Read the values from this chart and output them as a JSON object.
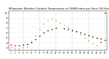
{
  "title": "Milwaukee Weather Outdoor Temperature vs THSW Index per Hour (24 Hours)",
  "title_fontsize": 2.8,
  "background_color": "#ffffff",
  "xlim": [
    0.5,
    24.5
  ],
  "ylim": [
    25,
    105
  ],
  "yticks": [
    30,
    40,
    50,
    60,
    70,
    80,
    90,
    100
  ],
  "ytick_labels": [
    "3",
    "4",
    "5",
    "6",
    "7",
    "8",
    "9",
    "10"
  ],
  "ytick_fontsize": 2.5,
  "xtick_fontsize": 2.2,
  "xticks": [
    1,
    2,
    3,
    4,
    5,
    6,
    7,
    8,
    9,
    10,
    11,
    12,
    13,
    14,
    15,
    16,
    17,
    18,
    19,
    20,
    21,
    22,
    23,
    24
  ],
  "grid_color": "#bbbbbb",
  "vgrid_positions": [
    4,
    8,
    12,
    16,
    20,
    24
  ],
  "orange_x": [
    1,
    2,
    3,
    4,
    5,
    6,
    7,
    8,
    9,
    10,
    11,
    12,
    13,
    14,
    15,
    16,
    17,
    18,
    19,
    20,
    21,
    22
  ],
  "orange_y": [
    30,
    29,
    28,
    30,
    32,
    40,
    55,
    68,
    78,
    85,
    88,
    85,
    80,
    76,
    72,
    68,
    62,
    56,
    50,
    44,
    39,
    35
  ],
  "black_x": [
    3,
    4,
    5,
    6,
    7,
    8,
    9,
    10,
    11,
    12,
    14,
    15,
    16,
    17,
    18,
    19,
    20,
    21,
    22,
    23,
    24
  ],
  "black_y": [
    35,
    36,
    37,
    41,
    47,
    54,
    60,
    65,
    68,
    70,
    69,
    67,
    65,
    63,
    60,
    58,
    55,
    52,
    50,
    48,
    46
  ],
  "red_x": [
    1,
    2,
    23,
    24
  ],
  "red_y": [
    36,
    34,
    42,
    100
  ],
  "marker_size": 1.8,
  "dot_size_orange": 1.5,
  "dot_size_black": 1.5,
  "dot_size_red": 1.8
}
